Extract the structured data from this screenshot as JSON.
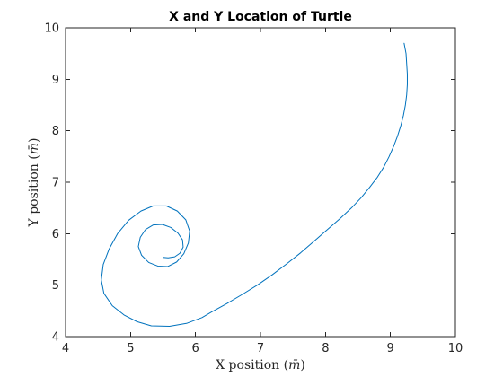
{
  "chart_data": {
    "type": "line",
    "title": "X and Y Location of Turtle",
    "xlabel_prefix": "X position",
    "ylabel_prefix": "Y position",
    "unit_symbol": "m̄",
    "xlim": [
      4,
      10
    ],
    "ylim": [
      4,
      10
    ],
    "xticks": [
      4,
      5,
      6,
      7,
      8,
      9,
      10
    ],
    "yticks": [
      4,
      5,
      6,
      7,
      8,
      9,
      10
    ],
    "grid": false,
    "series": [
      {
        "color": "#0072BD",
        "x": [
          9.21,
          9.24,
          9.25,
          9.26,
          9.26,
          9.25,
          9.23,
          9.2,
          9.16,
          9.11,
          9.05,
          8.98,
          8.9,
          8.8,
          8.68,
          8.55,
          8.4,
          8.23,
          8.03,
          7.83,
          7.62,
          7.4,
          7.18,
          6.95,
          6.72,
          6.48,
          6.25,
          6.1,
          5.87,
          5.6,
          5.32,
          5.1,
          4.9,
          4.72,
          4.59,
          4.55,
          4.58,
          4.67,
          4.8,
          4.97,
          5.16,
          5.35,
          5.55,
          5.72,
          5.85,
          5.91,
          5.89,
          5.82,
          5.71,
          5.57,
          5.42,
          5.28,
          5.17,
          5.12,
          5.15,
          5.23,
          5.35,
          5.49,
          5.62,
          5.73,
          5.8,
          5.81,
          5.76,
          5.68,
          5.58,
          5.5
        ],
        "y": [
          9.7,
          9.5,
          9.3,
          9.1,
          8.9,
          8.7,
          8.5,
          8.3,
          8.1,
          7.9,
          7.7,
          7.5,
          7.3,
          7.1,
          6.9,
          6.7,
          6.5,
          6.3,
          6.08,
          5.86,
          5.63,
          5.41,
          5.2,
          5.0,
          4.82,
          4.64,
          4.48,
          4.37,
          4.26,
          4.2,
          4.21,
          4.29,
          4.42,
          4.6,
          4.84,
          5.1,
          5.4,
          5.7,
          6.0,
          6.26,
          6.44,
          6.54,
          6.54,
          6.44,
          6.27,
          6.05,
          5.82,
          5.61,
          5.45,
          5.36,
          5.37,
          5.44,
          5.58,
          5.75,
          5.93,
          6.08,
          6.17,
          6.18,
          6.12,
          6.01,
          5.88,
          5.74,
          5.62,
          5.55,
          5.53,
          5.54
        ]
      }
    ]
  }
}
